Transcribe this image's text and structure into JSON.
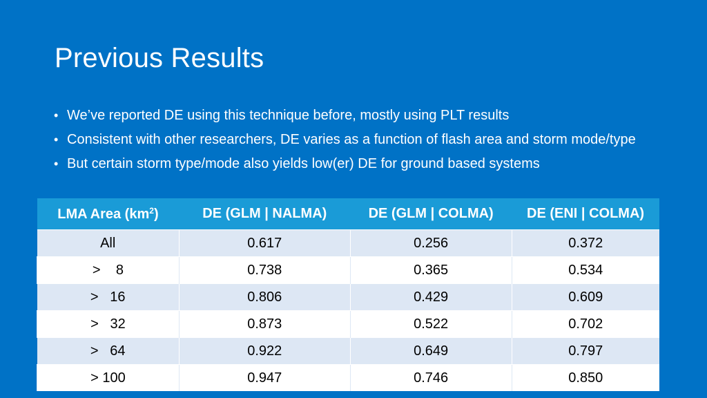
{
  "slide": {
    "title": "Previous Results",
    "bullets": [
      "We’ve reported DE using this technique before, mostly using PLT results",
      "Consistent with other researchers, DE varies as a function of flash area and storm mode/type",
      "But certain storm type/mode also yields low(er) DE for ground based systems"
    ]
  },
  "table": {
    "headers": {
      "col0_main": "LMA Area (km",
      "col0_sup": "2",
      "col0_tail": ")",
      "col1": "DE (GLM | NALMA)",
      "col2": "DE (GLM | COLMA)",
      "col3": "DE (ENI | COLMA)"
    },
    "rows": [
      [
        "All",
        "0.617",
        "0.256",
        "0.372"
      ],
      [
        ">    8",
        "0.738",
        "0.365",
        "0.534"
      ],
      [
        ">   16",
        "0.806",
        "0.429",
        "0.609"
      ],
      [
        ">   32",
        "0.873",
        "0.522",
        "0.702"
      ],
      [
        ">   64",
        "0.922",
        "0.649",
        "0.797"
      ],
      [
        "> 100",
        "0.947",
        "0.746",
        "0.850"
      ]
    ]
  }
}
